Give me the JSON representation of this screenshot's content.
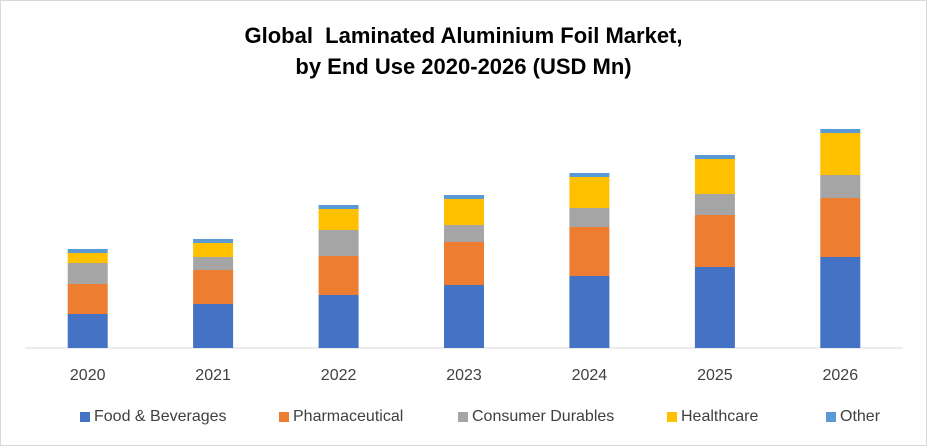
{
  "chart_data": {
    "type": "bar",
    "stacked": true,
    "title_line1": "Global  Laminated Aluminium Foil Market,",
    "title_line2": "by End Use 2020-2026 (USD Mn)",
    "categories": [
      "2020",
      "2021",
      "2022",
      "2023",
      "2024",
      "2025",
      "2026"
    ],
    "series": [
      {
        "name": "Food & Beverages",
        "color": "#4472C4",
        "values": [
          34,
          44,
          53,
          63,
          72,
          81,
          91
        ]
      },
      {
        "name": "Pharmaceutical",
        "color": "#ED7D31",
        "values": [
          30,
          34,
          39,
          43,
          49,
          52,
          59
        ]
      },
      {
        "name": "Consumer Durables",
        "color": "#A5A5A5",
        "values": [
          21,
          13,
          26,
          17,
          19,
          21,
          23
        ]
      },
      {
        "name": "Healthcare",
        "color": "#FFC000",
        "values": [
          10,
          14,
          21,
          26,
          31,
          35,
          42
        ]
      },
      {
        "name": "Other",
        "color": "#5B9BD5",
        "values": [
          4,
          4,
          4,
          4,
          4,
          4,
          4
        ]
      }
    ],
    "ylim": [
      0,
      240
    ],
    "grid": false,
    "legend_position": "bottom"
  }
}
